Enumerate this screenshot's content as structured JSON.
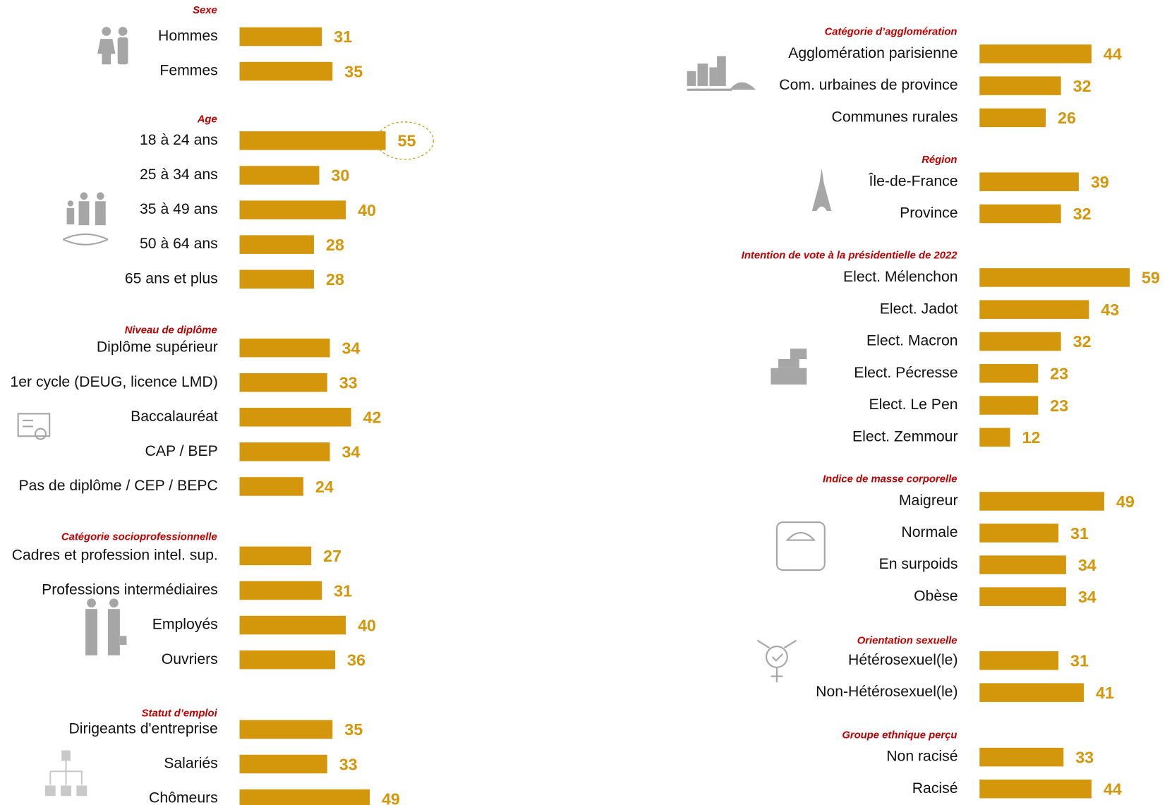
{
  "chart_data": [
    {
      "type": "bar",
      "title": "Sexe",
      "categories": [
        "Hommes",
        "Femmes"
      ],
      "values": [
        31,
        35
      ],
      "color": "#d4960a",
      "xlim": [
        0,
        60
      ]
    },
    {
      "type": "bar",
      "title": "Age",
      "categories": [
        "18 à 24 ans",
        "25 à 34 ans",
        "35 à 49 ans",
        "50 à 64 ans",
        "65 ans et plus"
      ],
      "values": [
        55,
        30,
        40,
        28,
        28
      ],
      "color": "#d4960a",
      "xlim": [
        0,
        60
      ]
    },
    {
      "type": "bar",
      "title": "Niveau de diplôme",
      "categories": [
        "Diplôme supérieur",
        "1er cycle (DEUG, licence LMD)",
        "Baccalauréat",
        "CAP / BEP",
        "Pas de diplôme / CEP / BEPC"
      ],
      "values": [
        34,
        33,
        42,
        34,
        24
      ],
      "color": "#d4960a",
      "xlim": [
        0,
        60
      ]
    },
    {
      "type": "bar",
      "title": "Catégorie socioprofessionnelle",
      "categories": [
        "Cadres et profession intel. sup.",
        "Professions intermédiaires",
        "Employés",
        "Ouvriers"
      ],
      "values": [
        27,
        31,
        40,
        36
      ],
      "color": "#d4960a",
      "xlim": [
        0,
        60
      ]
    },
    {
      "type": "bar",
      "title": "Statut d’emploi",
      "categories": [
        "Dirigeants d'entreprise",
        "Salariés",
        "Chômeurs"
      ],
      "values": [
        35,
        33,
        49
      ],
      "color": "#d4960a",
      "xlim": [
        0,
        60
      ]
    },
    {
      "type": "bar",
      "title": "Catégorie d’agglomération",
      "categories": [
        "Agglomération parisienne",
        "Com. urbaines de province",
        "Communes rurales"
      ],
      "values": [
        44,
        32,
        26
      ],
      "color": "#d4960a",
      "xlim": [
        0,
        60
      ]
    },
    {
      "type": "bar",
      "title": "Région",
      "categories": [
        "Île-de-France",
        "Province"
      ],
      "values": [
        39,
        32
      ],
      "color": "#d4960a",
      "xlim": [
        0,
        60
      ]
    },
    {
      "type": "bar",
      "title": "Intention de vote à la présidentielle de 2022",
      "categories": [
        "Elect. Mélenchon",
        "Elect. Jadot",
        "Elect. Macron",
        "Elect. Pécresse",
        "Elect. Le Pen",
        "Elect. Zemmour"
      ],
      "values": [
        59,
        43,
        32,
        23,
        23,
        12
      ],
      "color": "#d4960a",
      "xlim": [
        0,
        60
      ]
    },
    {
      "type": "bar",
      "title": "Indice de masse corporelle",
      "categories": [
        "Maigreur",
        "Normale",
        "En surpoids",
        "Obèse"
      ],
      "values": [
        49,
        31,
        34,
        34
      ],
      "color": "#d4960a",
      "xlim": [
        0,
        60
      ]
    },
    {
      "type": "bar",
      "title": "Orientation sexuelle",
      "categories": [
        "Hétérosexuel(le)",
        "Non-Hétérosexuel(le)"
      ],
      "values": [
        31,
        41
      ],
      "color": "#d4960a",
      "xlim": [
        0,
        60
      ]
    },
    {
      "type": "bar",
      "title": "Groupe ethnique perçu",
      "categories": [
        "Non racisé",
        "Racisé"
      ],
      "values": [
        33,
        44
      ],
      "color": "#d4960a",
      "xlim": [
        0,
        60
      ]
    }
  ]
}
